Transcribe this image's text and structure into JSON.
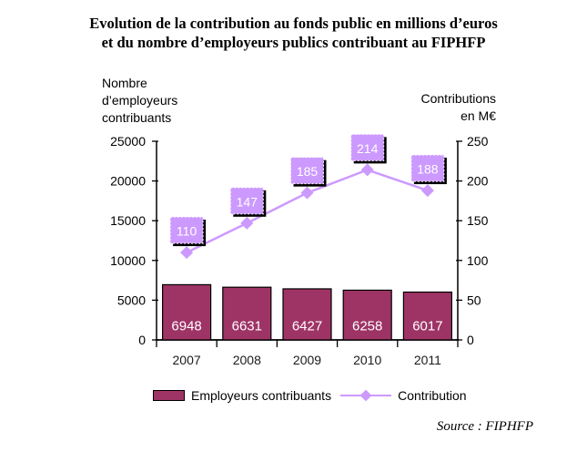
{
  "title": {
    "line1": "Evolution de la contribution au fonds public en millions d’euros",
    "line2": "et du nombre d’employeurs publics contribuant au FIPHFP"
  },
  "axis_units": {
    "left": "Nombre\nd’employeurs\ncontribuants",
    "right": "Contributions\nen M€"
  },
  "chart_data": {
    "type": "bar+line combo",
    "categories": [
      "2007",
      "2008",
      "2009",
      "2010",
      "2011"
    ],
    "series": [
      {
        "name": "Employeurs contribuants",
        "type": "bar",
        "axis": "left",
        "values": [
          6948,
          6631,
          6427,
          6258,
          6017
        ],
        "data_labels": [
          "6948",
          "6631",
          "6427",
          "6258",
          "6017"
        ]
      },
      {
        "name": "Contribution",
        "type": "line",
        "axis": "right",
        "values": [
          110,
          147,
          185,
          214,
          188
        ],
        "data_labels": [
          "110",
          "147",
          "185",
          "214",
          "188"
        ]
      }
    ],
    "left_axis": {
      "min": 0,
      "max": 25000,
      "step": 5000,
      "tick_labels": [
        "0",
        "5000",
        "10000",
        "15000",
        "20000",
        "25000"
      ]
    },
    "right_axis": {
      "min": 0,
      "max": 250,
      "step": 50,
      "tick_labels": [
        "0",
        "50",
        "100",
        "150",
        "200",
        "250"
      ]
    },
    "grid": false,
    "legend_position": "bottom"
  },
  "source_note": "Source : FIPHFP",
  "colors": {
    "bar": "#9E3366",
    "bar_border": "#000000",
    "line": "#CC99FF",
    "label_box_fill": "#CC99FF",
    "label_box_shadow": "#000000",
    "value_text": "#FFFFFF",
    "axis": "#000000"
  }
}
